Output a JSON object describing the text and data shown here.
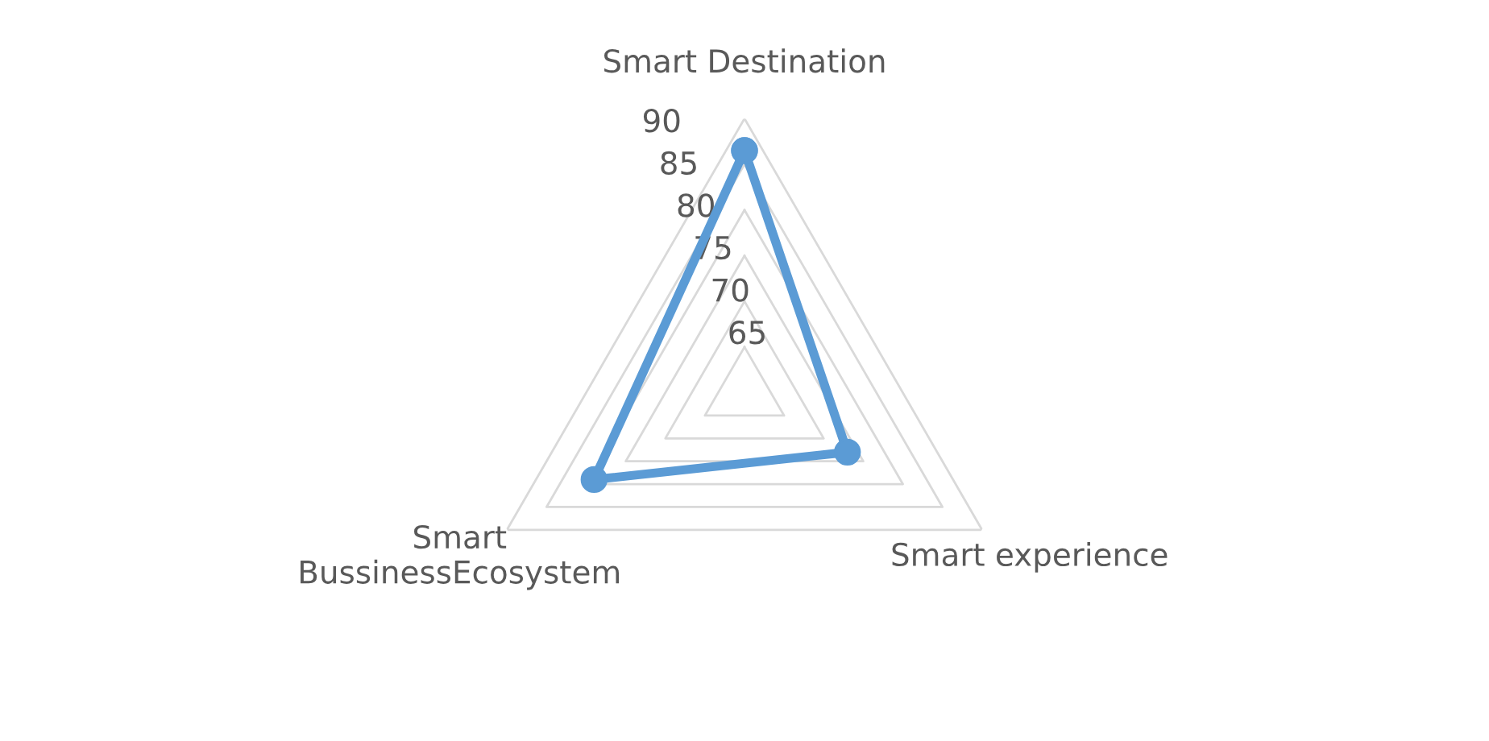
{
  "chart_data": {
    "type": "radar",
    "categories": [
      "Smart Destination",
      "Smart experience",
      "Smart\nBussinessEcosystem"
    ],
    "series": [
      {
        "color": "#5b9bd5",
        "values": [
          86.5,
          73,
          79
        ]
      }
    ],
    "ylim": [
      60,
      90
    ],
    "yticks": [
      65,
      70,
      75,
      80,
      85,
      90
    ],
    "grid": true,
    "marker": "circle",
    "line_style": "solid"
  }
}
